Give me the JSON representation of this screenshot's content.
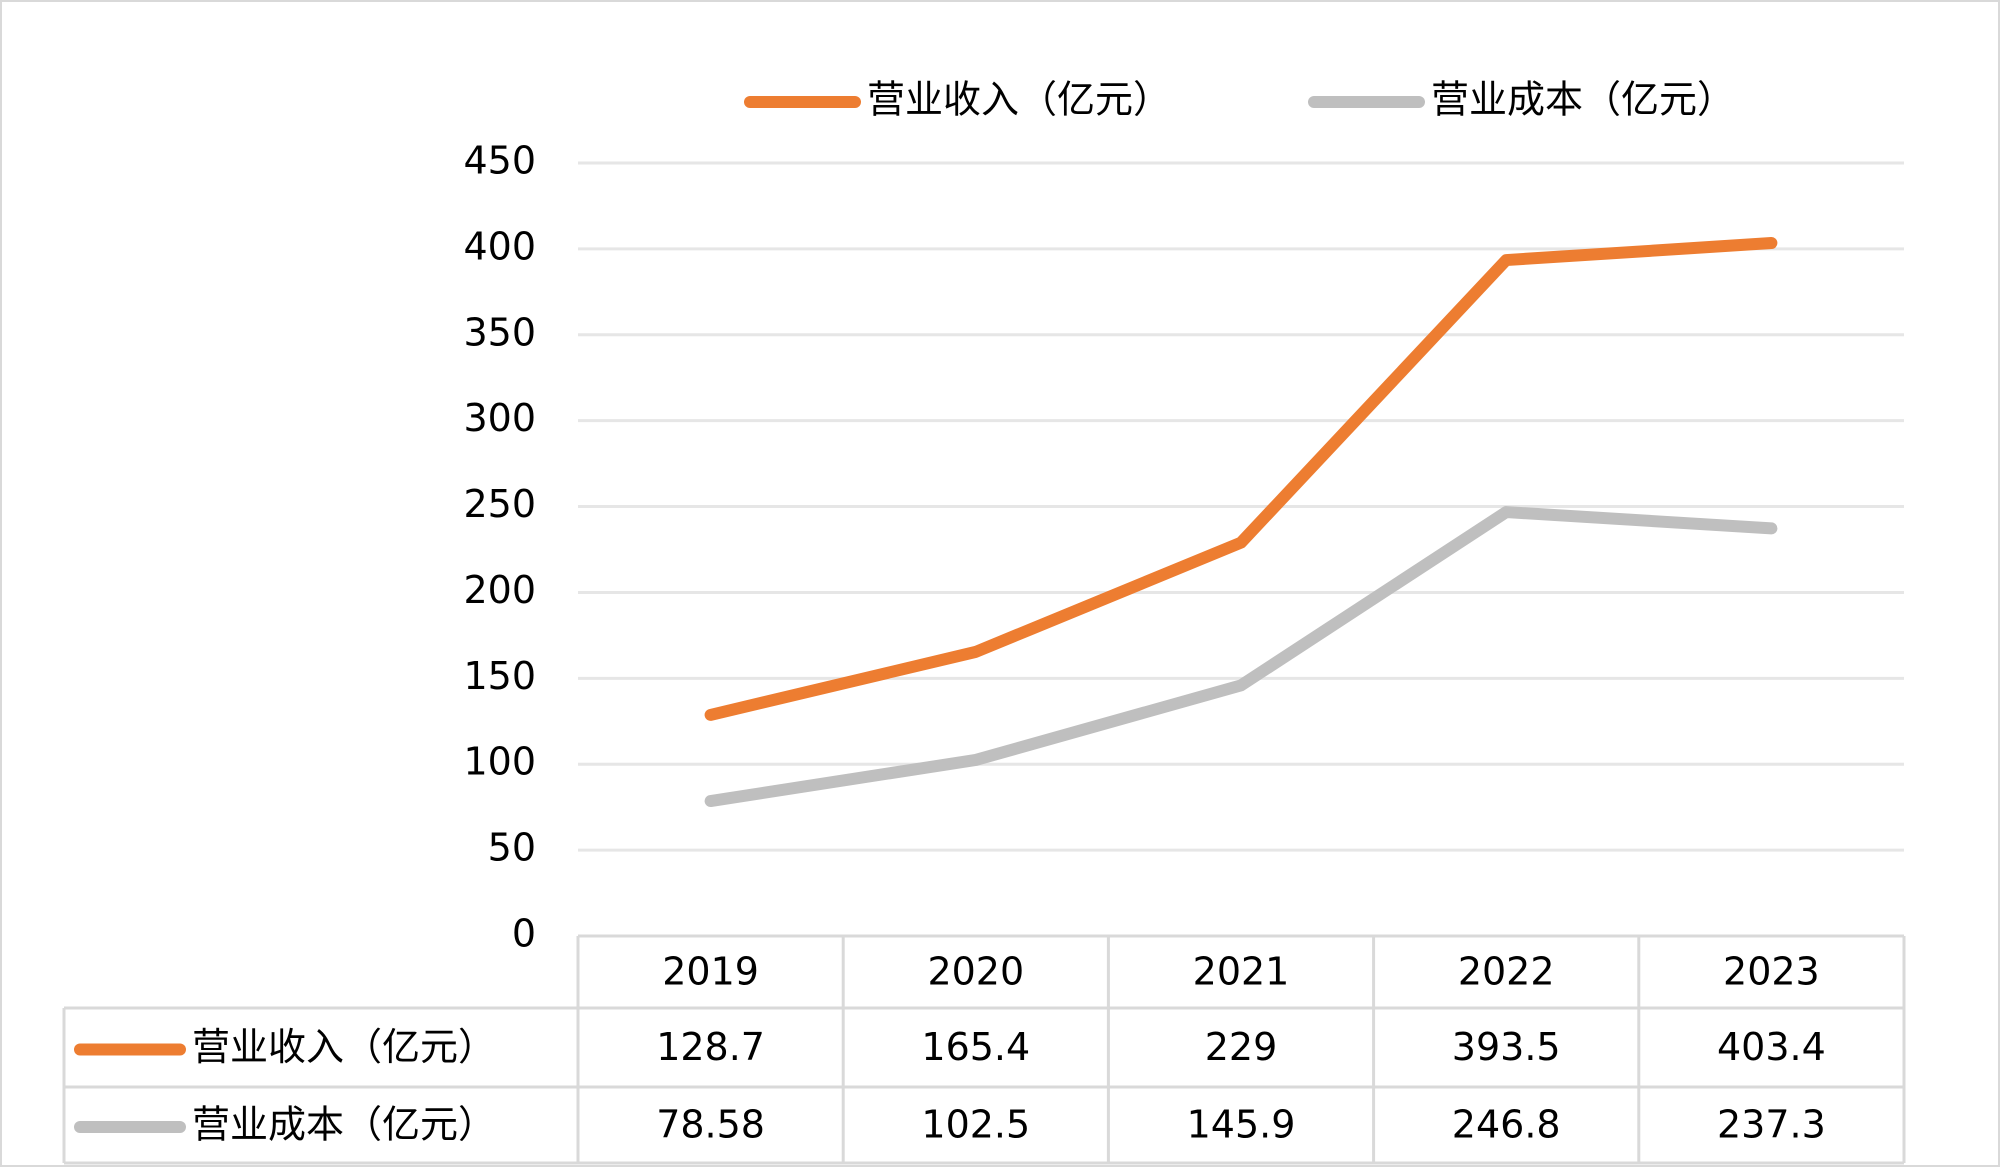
{
  "chart_data": {
    "type": "line",
    "categories": [
      "2019",
      "2020",
      "2021",
      "2022",
      "2023"
    ],
    "series": [
      {
        "name": "营业收入（亿元）",
        "color": "#ed7d31",
        "values": [
          128.7,
          165.4,
          229,
          393.5,
          403.4
        ]
      },
      {
        "name": "营业成本（亿元）",
        "color": "#bfbfbf",
        "values": [
          78.58,
          102.5,
          145.9,
          246.8,
          237.3
        ]
      }
    ],
    "ylim": [
      0,
      450
    ],
    "yticks": [
      0,
      50,
      100,
      150,
      200,
      250,
      300,
      350,
      400,
      450
    ],
    "grid": true,
    "legend": "top",
    "data_table": true
  }
}
